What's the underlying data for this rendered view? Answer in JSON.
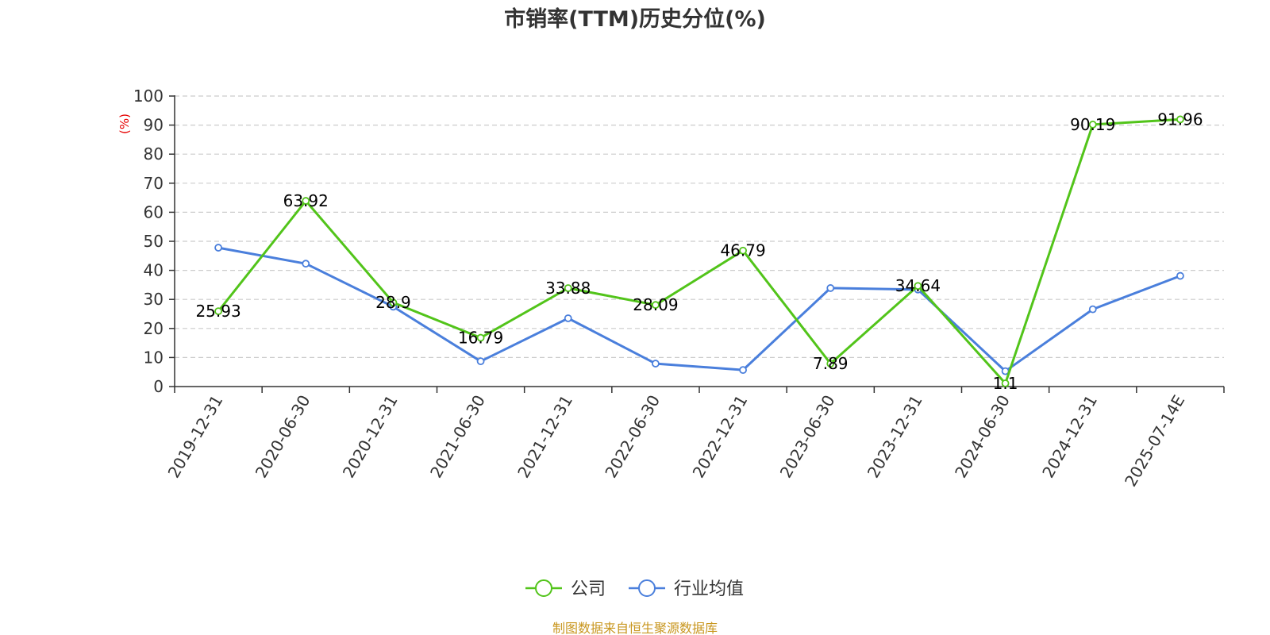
{
  "chart_data": {
    "type": "line",
    "title": "市销率(TTM)历史分位(%)",
    "ylabel": "(%)",
    "ylim": [
      0,
      100
    ],
    "yticks": [
      0,
      10,
      20,
      30,
      40,
      50,
      60,
      70,
      80,
      90,
      100
    ],
    "grid": true,
    "legend_position": "bottom",
    "categories": [
      "2019-12-31",
      "2020-06-30",
      "2020-12-31",
      "2021-06-30",
      "2021-12-31",
      "2022-06-30",
      "2022-12-31",
      "2023-06-30",
      "2023-12-31",
      "2024-06-30",
      "2024-12-31",
      "2025-07-14E"
    ],
    "series": [
      {
        "name": "公司",
        "color": "#52c41a",
        "values": [
          25.93,
          63.92,
          28.9,
          16.79,
          33.88,
          28.09,
          46.79,
          7.89,
          34.64,
          1.1,
          90.19,
          91.96
        ],
        "labels": [
          "25.93",
          "63.92",
          "28.9",
          "16.79",
          "33.88",
          "28.09",
          "46.79",
          "7.89",
          "34.64",
          "1.1",
          "90.19",
          "91.96"
        ]
      },
      {
        "name": "行业均值",
        "color": "#4a7fdc",
        "values": [
          47.8,
          42.3,
          27.5,
          8.7,
          23.5,
          7.9,
          5.7,
          33.9,
          33.4,
          5.3,
          26.6,
          38.1
        ]
      }
    ],
    "source": "制图数据来自恒生聚源数据库"
  }
}
